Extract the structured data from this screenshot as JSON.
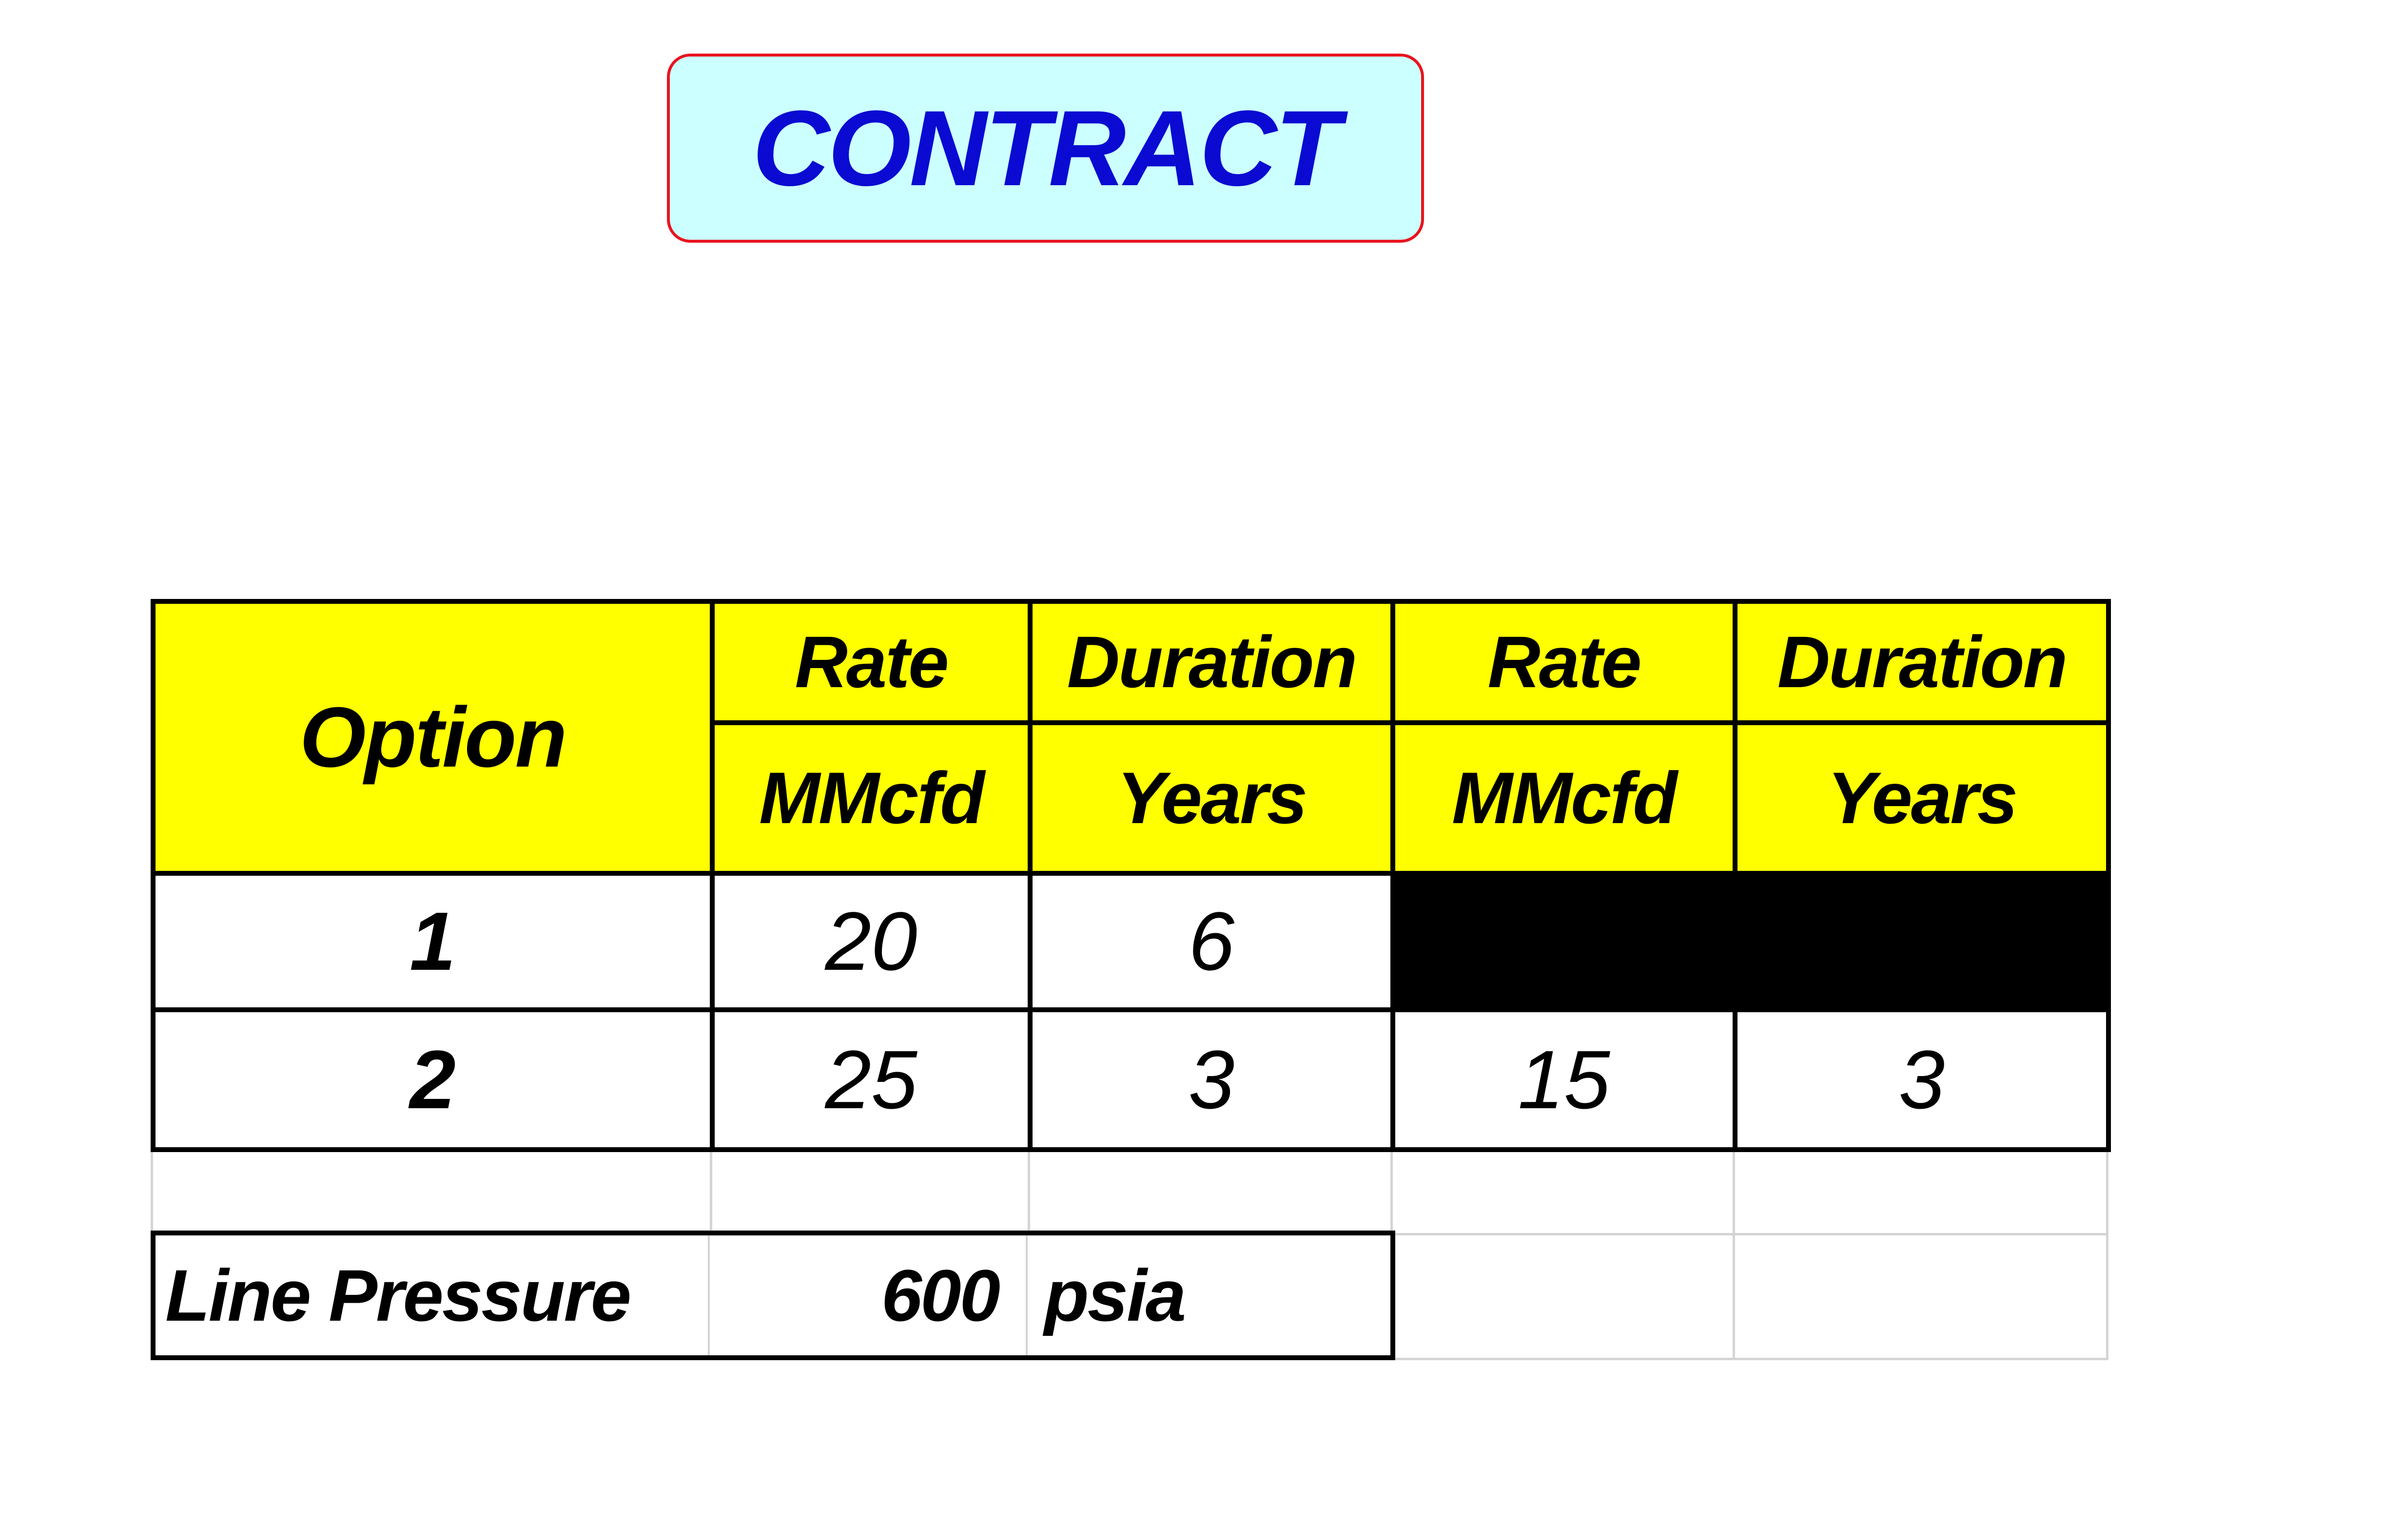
{
  "title": "CONTRACT",
  "colors": {
    "title_text": "#0a0ad2",
    "title_bg": "#ccffff",
    "title_border": "#e8141e",
    "header_bg": "#ffff00",
    "blocked_cell": "#000000"
  },
  "table": {
    "option_header": "Option",
    "headers_top": [
      "Rate",
      "Duration",
      "Rate",
      "Duration"
    ],
    "headers_units": [
      "MMcfd",
      "Years",
      "MMcfd",
      "Years"
    ],
    "rows": [
      {
        "option": "1",
        "rate1": "20",
        "duration1": "6",
        "rate2": "",
        "duration2": ""
      },
      {
        "option": "2",
        "rate1": "25",
        "duration1": "3",
        "rate2": "15",
        "duration2": "3"
      }
    ]
  },
  "line_pressure": {
    "label": "Line Pressure",
    "value": "600",
    "unit": "psia"
  }
}
